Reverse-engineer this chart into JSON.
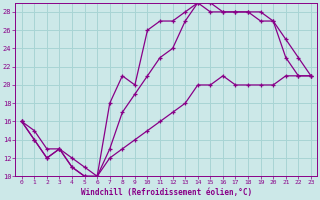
{
  "xlabel": "Windchill (Refroidissement éolien,°C)",
  "xlim": [
    -0.5,
    23.5
  ],
  "ylim": [
    10,
    29
  ],
  "yticks": [
    10,
    12,
    14,
    16,
    18,
    20,
    22,
    24,
    26,
    28
  ],
  "xticks": [
    0,
    1,
    2,
    3,
    4,
    5,
    6,
    7,
    8,
    9,
    10,
    11,
    12,
    13,
    14,
    15,
    16,
    17,
    18,
    19,
    20,
    21,
    22,
    23
  ],
  "background_color": "#cce8e8",
  "grid_color": "#a8d4d4",
  "line_color": "#880088",
  "line1_x": [
    0,
    1,
    2,
    3,
    4,
    5,
    6,
    7,
    8,
    9,
    10,
    11,
    12,
    13,
    14,
    15,
    16,
    17,
    18,
    19,
    20,
    21,
    22,
    23
  ],
  "line1_y": [
    16,
    14,
    12,
    13,
    11,
    10,
    10,
    13,
    17,
    19,
    21,
    23,
    24,
    27,
    29,
    29,
    28,
    28,
    28,
    28,
    27,
    25,
    23,
    21
  ],
  "line2_x": [
    0,
    1,
    2,
    3,
    4,
    5,
    6,
    7,
    8,
    9,
    10,
    11,
    12,
    13,
    14,
    15,
    16,
    17,
    18,
    19,
    20,
    21,
    22,
    23
  ],
  "line2_y": [
    16,
    14,
    12,
    13,
    11,
    10,
    10,
    18,
    21,
    20,
    26,
    27,
    27,
    28,
    29,
    28,
    28,
    28,
    28,
    27,
    27,
    23,
    21,
    21
  ],
  "line3_x": [
    0,
    1,
    2,
    3,
    4,
    5,
    6,
    7,
    8,
    9,
    10,
    11,
    12,
    13,
    14,
    15,
    16,
    17,
    18,
    19,
    20,
    21,
    22,
    23
  ],
  "line3_y": [
    16,
    15,
    13,
    13,
    12,
    11,
    10,
    12,
    13,
    14,
    15,
    16,
    17,
    18,
    20,
    20,
    21,
    20,
    20,
    20,
    20,
    21,
    21,
    21
  ]
}
